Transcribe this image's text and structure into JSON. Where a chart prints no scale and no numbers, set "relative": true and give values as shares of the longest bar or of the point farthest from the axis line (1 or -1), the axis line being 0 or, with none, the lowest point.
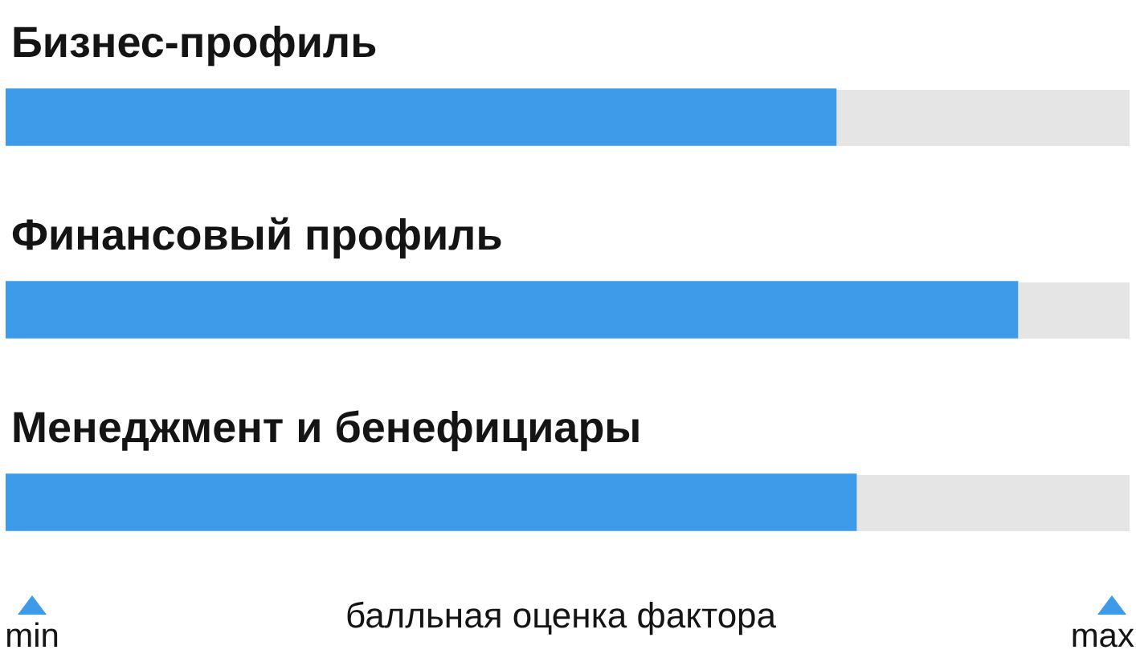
{
  "chart_data": {
    "type": "bar",
    "orientation": "horizontal",
    "relative": true,
    "categories": [
      "Бизнес-профиль",
      "Финансовый профиль",
      "Менеджмент и бенефициары"
    ],
    "values": [
      0.82,
      1,
      0.84
    ],
    "color": "#3d9be9",
    "xlabel": "балльная оценка фактора",
    "annotations": [
      "min",
      "max"
    ]
  }
}
